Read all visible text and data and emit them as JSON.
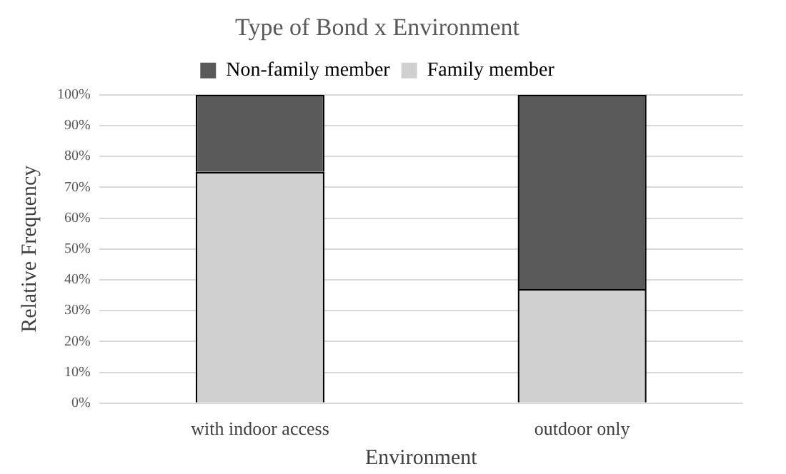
{
  "chart_data": {
    "type": "bar",
    "title": "Type of Bond x Environment",
    "xlabel": "Environment",
    "ylabel": "Relative Frequency",
    "categories": [
      "with indoor access",
      "outdoor only"
    ],
    "stacked": true,
    "series": [
      {
        "name": "Family member",
        "color": "#d0d0d0",
        "values": [
          75,
          37
        ]
      },
      {
        "name": "Non-family member",
        "color": "#595959",
        "values": [
          25,
          63
        ]
      }
    ],
    "ylim": [
      0,
      100
    ],
    "yticks": [
      {
        "value": 0,
        "label": "0%"
      },
      {
        "value": 10,
        "label": "10%"
      },
      {
        "value": 20,
        "label": "20%"
      },
      {
        "value": 30,
        "label": "30%"
      },
      {
        "value": 40,
        "label": "40%"
      },
      {
        "value": 50,
        "label": "50%"
      },
      {
        "value": 60,
        "label": "60%"
      },
      {
        "value": 70,
        "label": "70%"
      },
      {
        "value": 80,
        "label": "80%"
      },
      {
        "value": 90,
        "label": "90%"
      },
      {
        "value": 100,
        "label": "100%"
      }
    ],
    "grid": "y",
    "legend": "top"
  }
}
